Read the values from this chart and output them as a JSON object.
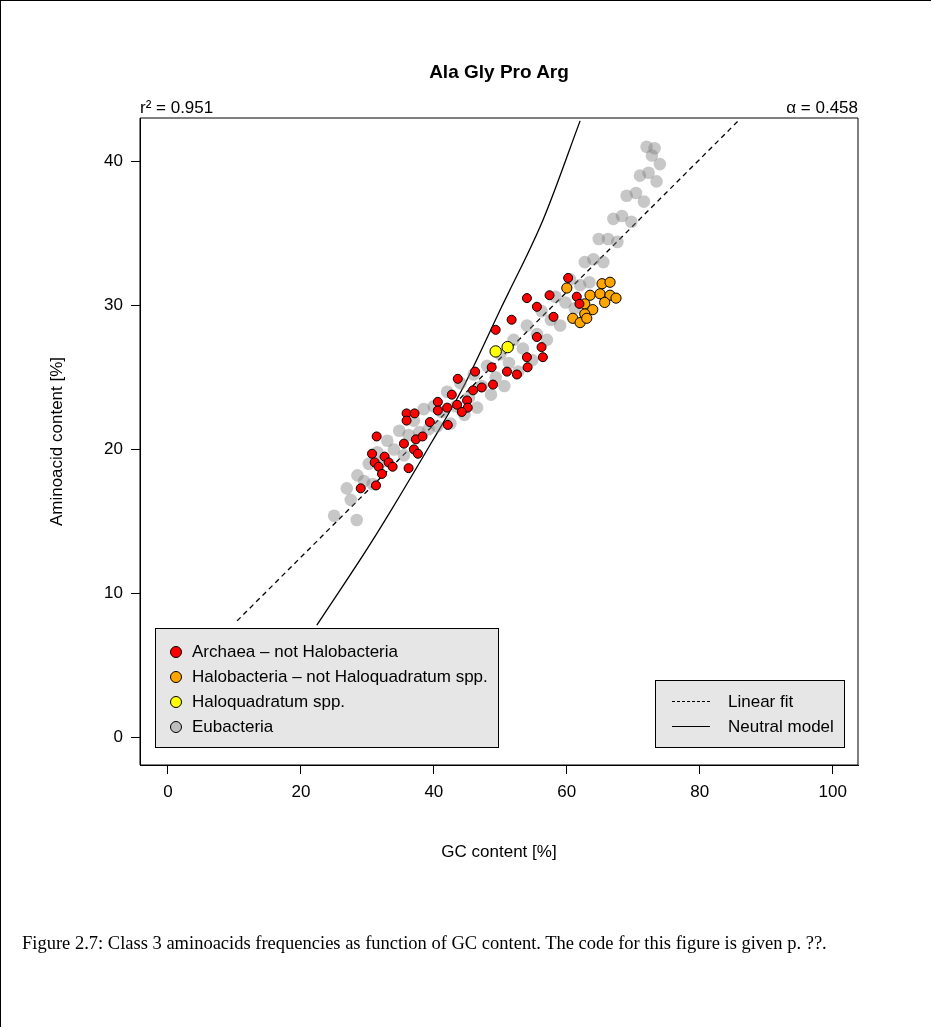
{
  "chart_data": {
    "type": "scatter",
    "title": "Ala Gly Pro Arg",
    "xlabel": "GC content [%]",
    "ylabel": "Aminoacid content [%]",
    "xlim": [
      -4.2,
      103.8
    ],
    "ylim": [
      -1.9,
      43
    ],
    "xticks": [
      0,
      20,
      40,
      60,
      80,
      100
    ],
    "yticks": [
      0,
      10,
      20,
      30,
      40
    ],
    "grid": false,
    "legend": "bottom left",
    "marker": "circle",
    "annotations": [
      "r² = 0.951",
      "α = 0.458",
      "Figure 2.7: Class 3 aminoacids frequencies as function of GC content. The code for this figure is given p. ??."
    ],
    "series": [
      {
        "name": "Archaea – not Halobacteria",
        "color": "#ff0000",
        "x": [
          60.2,
          57.4,
          54.0,
          51.7,
          49.3,
          55.5,
          58.0,
          55.5,
          61.5,
          61.9,
          56.2,
          56.4,
          54.0,
          54.1,
          52.5,
          51.0,
          48.7,
          46.2,
          48.9,
          47.2,
          45.9,
          45.0,
          43.6,
          45.1,
          42.7,
          42.0,
          40.6,
          35.9,
          37.1,
          35.9,
          31.4,
          30.7,
          32.6,
          31.1,
          31.7,
          33.2,
          32.2,
          33.8,
          36.2,
          31.3,
          29.0,
          35.5,
          37.3,
          38.3,
          37.0,
          37.6,
          39.4,
          40.6,
          42.1,
          43.5,
          44.2
        ],
        "values": [
          31.9,
          30.7,
          30.5,
          29.0,
          28.3,
          27.8,
          29.2,
          29.9,
          30.6,
          30.1,
          27.1,
          26.4,
          26.4,
          25.7,
          25.2,
          25.4,
          25.7,
          25.4,
          24.5,
          24.3,
          24.1,
          23.4,
          24.9,
          22.9,
          23.8,
          22.9,
          23.3,
          22.5,
          22.5,
          22.0,
          20.9,
          19.7,
          19.5,
          19.1,
          18.8,
          19.1,
          18.3,
          18.8,
          18.7,
          17.5,
          17.3,
          20.4,
          20.7,
          20.9,
          20.0,
          19.7,
          21.9,
          22.7,
          21.7,
          23.1,
          22.6
        ]
      },
      {
        "name": "Halobacteria – not Haloquadratum spp.",
        "color": "#ffa500",
        "x": [
          65.3,
          66.5,
          63.5,
          65.0,
          66.5,
          67.4,
          65.7,
          62.7,
          63.9,
          62.7,
          60.9,
          62.0,
          63.0,
          60.0
        ],
        "values": [
          31.5,
          31.6,
          30.7,
          30.8,
          30.7,
          30.5,
          30.2,
          30.1,
          29.7,
          29.4,
          29.1,
          28.8,
          29.1,
          31.2
        ]
      },
      {
        "name": "Haloquadratum spp.",
        "color": "#ffff00",
        "x": [
          49.3,
          51.1
        ],
        "values": [
          26.8,
          27.1
        ]
      },
      {
        "name": "Eubacteria",
        "color": "#808080",
        "x": [
          26.9,
          27.5,
          28.4,
          25.0,
          28.5,
          29.5,
          30.2,
          30.8,
          31.5,
          32.5,
          33.0,
          34.0,
          34.8,
          35.5,
          36.2,
          37.0,
          37.8,
          38.5,
          39.2,
          40.0,
          40.5,
          41.2,
          42.0,
          42.5,
          43.3,
          44.0,
          44.6,
          45.3,
          46.0,
          46.5,
          47.2,
          48.0,
          48.6,
          49.3,
          50.0,
          50.6,
          51.3,
          52.0,
          52.7,
          53.4,
          54.0,
          54.8,
          55.5,
          56.2,
          57.0,
          57.6,
          58.3,
          59.0,
          59.8,
          60.5,
          61.2,
          62.0,
          62.7,
          63.4,
          64.0,
          64.8,
          65.5,
          66.2,
          67.0,
          67.6,
          68.3,
          69.0,
          69.7,
          70.4,
          71.0,
          71.6,
          72.3,
          72.8,
          73.5,
          74.0,
          72.0,
          73.2
        ],
        "values": [
          17.3,
          16.5,
          15.1,
          15.4,
          18.2,
          17.8,
          19.0,
          17.6,
          19.8,
          19.2,
          20.6,
          20.0,
          21.3,
          19.6,
          21.0,
          22.0,
          21.2,
          22.8,
          21.4,
          23.0,
          21.6,
          22.6,
          24.0,
          21.8,
          23.0,
          24.6,
          22.4,
          23.6,
          25.2,
          22.9,
          24.4,
          25.8,
          23.8,
          25.0,
          26.6,
          24.4,
          26.0,
          27.6,
          25.4,
          27.0,
          28.6,
          26.2,
          28.0,
          29.6,
          27.6,
          29.0,
          30.6,
          28.6,
          30.2,
          31.8,
          29.8,
          31.4,
          33.0,
          31.6,
          33.2,
          34.6,
          33.0,
          34.6,
          36.0,
          34.4,
          36.2,
          37.6,
          35.8,
          37.8,
          39.0,
          37.2,
          39.2,
          40.4,
          38.6,
          39.8,
          41.0,
          40.9
        ]
      },
      {
        "name": "Linear fit",
        "type": "line",
        "marker": "none",
        "line_style": "dashed",
        "color": "#000000",
        "x": [
          10.4,
          86
        ],
        "values": [
          8.1,
          42.9
        ]
      },
      {
        "name": "Neutral model",
        "type": "line",
        "marker": "none",
        "line_style": "solid",
        "color": "#000000",
        "x": [
          22.4,
          30.8,
          39.8,
          44.4,
          50.2,
          56.4,
          62
        ],
        "values": [
          7.8,
          13.7,
          20.6,
          24.3,
          29.9,
          35.9,
          42.8
        ]
      }
    ]
  }
}
